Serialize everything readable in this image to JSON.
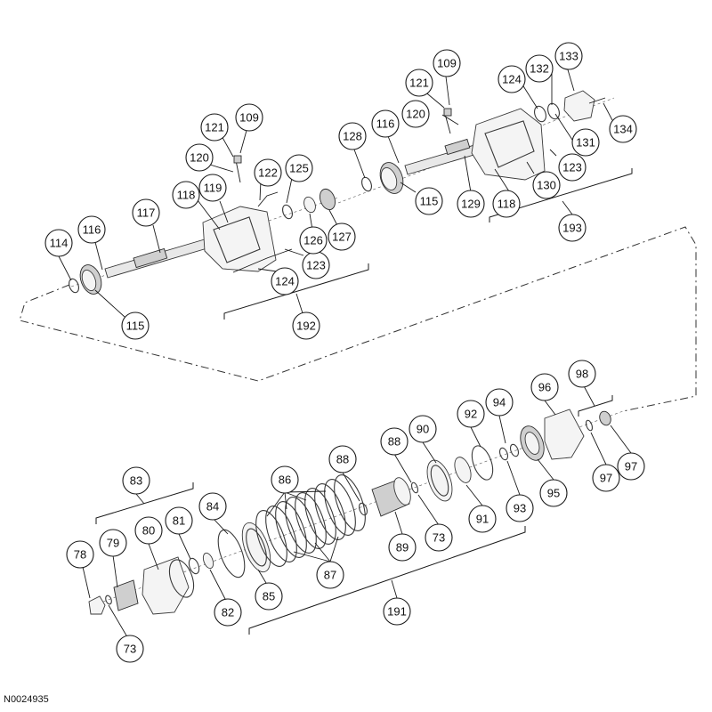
{
  "drawing_id": "N0024935",
  "callouts": [
    "73",
    "73",
    "78",
    "79",
    "80",
    "81",
    "82",
    "83",
    "84",
    "85",
    "86",
    "87",
    "88",
    "88",
    "89",
    "90",
    "91",
    "92",
    "93",
    "94",
    "95",
    "96",
    "97",
    "97",
    "98",
    "109",
    "109",
    "114",
    "115",
    "115",
    "116",
    "116",
    "117",
    "118",
    "118",
    "119",
    "120",
    "120",
    "121",
    "121",
    "122",
    "123",
    "123",
    "124",
    "124",
    "125",
    "126",
    "127",
    "128",
    "129",
    "130",
    "131",
    "132",
    "133",
    "134",
    "191",
    "192",
    "193"
  ]
}
